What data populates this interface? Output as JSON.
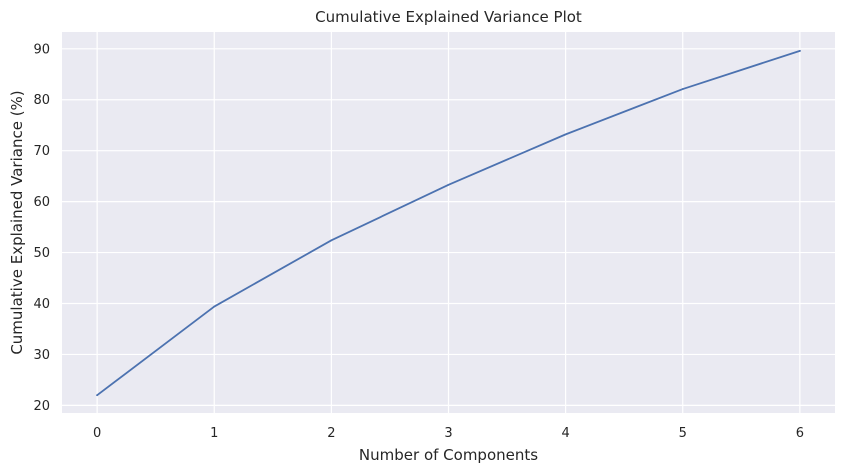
{
  "chart_data": {
    "type": "line",
    "title": "Cumulative Explained Variance Plot",
    "xlabel": "Number of Components",
    "ylabel": "Cumulative Explained Variance (%)",
    "x": [
      0,
      1,
      2,
      3,
      4,
      5,
      6
    ],
    "series": [
      {
        "values": [
          22.0,
          39.4,
          52.4,
          63.3,
          73.2,
          82.1,
          89.6
        ]
      }
    ],
    "xlim": [
      -0.3,
      6.3
    ],
    "ylim": [
      18.5,
      93.3
    ],
    "xticks": [
      "0",
      "1",
      "2",
      "3",
      "4",
      "5",
      "6"
    ],
    "yticks": [
      "20",
      "30",
      "40",
      "50",
      "60",
      "70",
      "80",
      "90"
    ],
    "grid": true,
    "colors": {
      "background": "#eaeaf2",
      "grid": "#ffffff",
      "line": "#4c72b0"
    }
  }
}
